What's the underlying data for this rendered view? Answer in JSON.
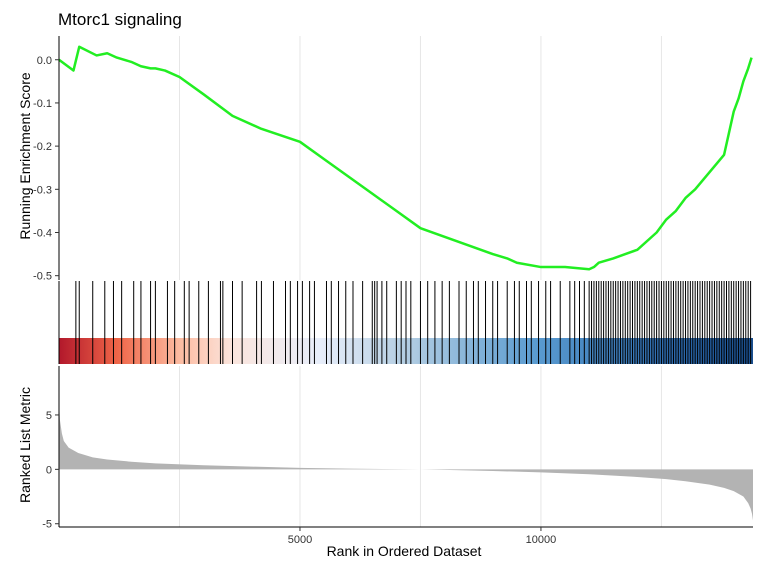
{
  "chart_data": {
    "type": "line",
    "title": "Mtorc1 signaling",
    "xlabel": "Rank in Ordered Dataset",
    "xlim": [
      0,
      14400
    ],
    "x_ticks": [
      5000,
      10000
    ],
    "x_tick_labels": [
      "5000",
      "10000"
    ],
    "grid": "vertical major and minor lines",
    "panels": {
      "enrichment": {
        "ylabel": "Running Enrichment Score",
        "ylim": [
          -0.51,
          0.055
        ],
        "y_ticks": [
          0.0,
          -0.1,
          -0.2,
          -0.3,
          -0.4,
          -0.5
        ],
        "y_tick_labels": [
          "0.0",
          "-0.1",
          "-0.2",
          "-0.3",
          "-0.4",
          "-0.5"
        ],
        "line_color": "#22ee22",
        "series": [
          {
            "x": [
              0,
              300,
              420,
              780,
              1000,
              1200,
              1500,
              1700,
              1900,
              2000,
              2200,
              2500,
              3000,
              3600,
              4200,
              5000,
              5500,
              6000,
              6500,
              7000,
              7500,
              8000,
              8500,
              9000,
              9300,
              9500,
              10000,
              10500,
              11000,
              11100,
              11200,
              11500,
              12000,
              12400,
              12600,
              12800,
              13000,
              13200,
              13500,
              13800,
              13900,
              14000,
              14100,
              14200,
              14300,
              14370
            ],
            "y": [
              0.0,
              -0.025,
              0.03,
              0.01,
              0.015,
              0.005,
              -0.005,
              -0.015,
              -0.02,
              -0.02,
              -0.025,
              -0.04,
              -0.08,
              -0.13,
              -0.16,
              -0.19,
              -0.23,
              -0.27,
              -0.31,
              -0.35,
              -0.39,
              -0.41,
              -0.43,
              -0.45,
              -0.46,
              -0.47,
              -0.48,
              -0.48,
              -0.485,
              -0.48,
              -0.47,
              -0.46,
              -0.44,
              -0.4,
              -0.37,
              -0.35,
              -0.32,
              -0.3,
              -0.26,
              -0.22,
              -0.17,
              -0.12,
              -0.09,
              -0.05,
              -0.02,
              0.005
            ]
          }
        ]
      },
      "hits": {
        "color_gradient": [
          "#b2182b",
          "#ef6548",
          "#fcbba1",
          "#fbe5dd",
          "#e8eefa",
          "#b6cfe3",
          "#5a9bd0",
          "#2f6db0",
          "#1a4f8f"
        ],
        "gradient_stops": [
          0,
          1200,
          2500,
          3600,
          5400,
          7100,
          9900,
          12500,
          14400
        ],
        "hit_positions": [
          350,
          420,
          700,
          950,
          1130,
          1300,
          1550,
          1700,
          1900,
          2000,
          2250,
          2400,
          2600,
          2700,
          2900,
          3100,
          3350,
          3400,
          3600,
          3800,
          4100,
          4200,
          4450,
          4700,
          4800,
          4950,
          5050,
          5200,
          5300,
          5550,
          5650,
          5800,
          5950,
          6100,
          6300,
          6500,
          6550,
          6600,
          6700,
          6800,
          7000,
          7100,
          7200,
          7300,
          7500,
          7650,
          7800,
          7950,
          8100,
          8300,
          8450,
          8600,
          8700,
          8850,
          9000,
          9100,
          9300,
          9450,
          9550,
          9700,
          9800,
          9950,
          10100,
          10200,
          10400,
          10600,
          10700,
          10800,
          10900,
          11000,
          11050,
          11100,
          11150,
          11200,
          11250,
          11300,
          11350,
          11400,
          11450,
          11500,
          11550,
          11600,
          11650,
          11700,
          11750,
          11800,
          11850,
          11900,
          11950,
          12000,
          12050,
          12100,
          12150,
          12200,
          12250,
          12300,
          12350,
          12400,
          12450,
          12500,
          12550,
          12600,
          12650,
          12700,
          12750,
          12800,
          12850,
          12900,
          12950,
          13000,
          13050,
          13100,
          13150,
          13200,
          13250,
          13300,
          13350,
          13400,
          13450,
          13500,
          13550,
          13600,
          13650,
          13700,
          13750,
          13800,
          13850,
          13900,
          13950,
          14000,
          14050,
          14100,
          14150,
          14200,
          14250,
          14300,
          14350
        ]
      },
      "metric": {
        "ylabel": "Ranked List Metric",
        "ylim": [
          -5.3,
          9.5
        ],
        "y_ticks": [
          5,
          0,
          -5
        ],
        "y_tick_labels": [
          "5",
          "0",
          "-5"
        ],
        "fill_color": "#b3b3b3",
        "series": [
          {
            "x": [
              0,
              20,
              60,
              100,
              200,
              400,
              700,
              1000,
              1500,
              2000,
              3000,
              4000,
              5000,
              6000,
              7000,
              7500,
              8000,
              9000,
              10000,
              11000,
              12000,
              12600,
              13000,
              13500,
              13800,
              14000,
              14200,
              14300,
              14350,
              14380,
              14400
            ],
            "y": [
              6.3,
              4.5,
              3.3,
              2.6,
              2.0,
              1.5,
              1.1,
              0.9,
              0.7,
              0.55,
              0.38,
              0.25,
              0.14,
              0.07,
              0.02,
              0.0,
              -0.05,
              -0.15,
              -0.28,
              -0.45,
              -0.7,
              -0.9,
              -1.1,
              -1.4,
              -1.7,
              -2.0,
              -2.5,
              -3.1,
              -3.6,
              -4.1,
              -4.7
            ]
          }
        ]
      }
    }
  }
}
